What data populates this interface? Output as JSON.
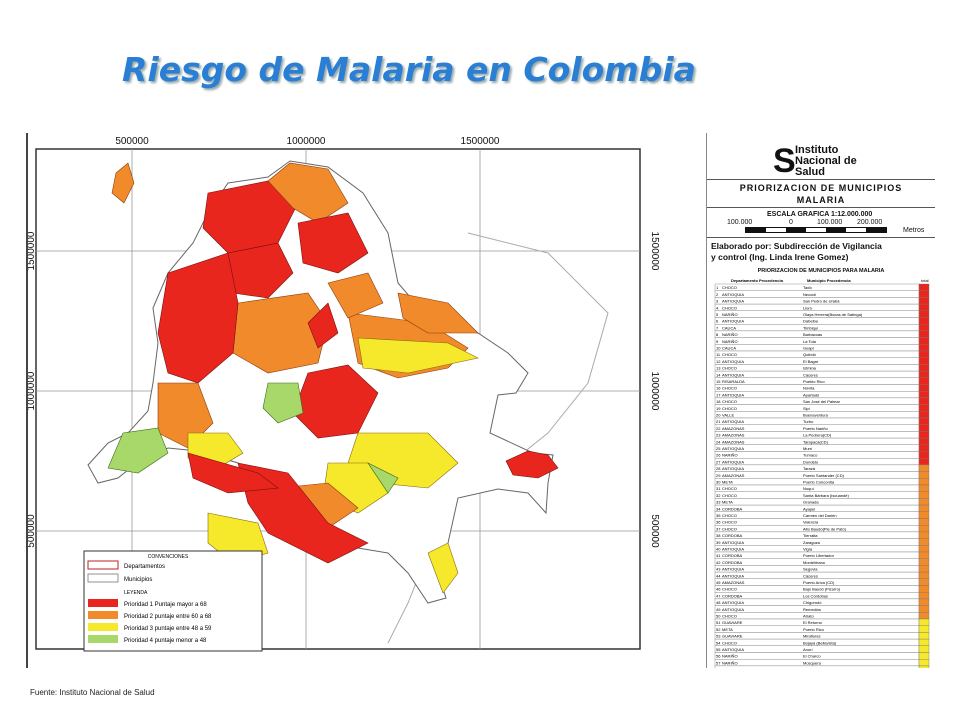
{
  "title": "Riesgo de Malaria en Colombia",
  "source": "Fuente: Instituto Nacional de Salud",
  "map": {
    "x_ticks": [
      "500000",
      "1000000",
      "1500000"
    ],
    "y_ticks": [
      "1500000",
      "1000000",
      "500000"
    ],
    "legend": {
      "conventions_heading": "CONVENCIONES",
      "departamentos": "Departamentos",
      "municipios": "Municipios",
      "leyenda_heading": "LEYENDA",
      "items": [
        {
          "label": "Prioridad 1 Puntaje mayor a 68",
          "color": "#e8261e"
        },
        {
          "label": "Prioridad 2 puntaje entre 60 a 68",
          "color": "#f08a2a"
        },
        {
          "label": "Prioridad 3 puntaje entre 48 a 59",
          "color": "#f6e82a"
        },
        {
          "label": "Prioridad 4 puntaje menor a 48",
          "color": "#a8d86a"
        }
      ]
    }
  },
  "panel": {
    "logo_lines": [
      "Instituto",
      "Nacional de",
      "Salud"
    ],
    "title_line1": "PRIORIZACION DE MUNICIPIOS",
    "title_line2": "MALARIA",
    "scale_label": "ESCALA GRAFICA 1:12.000.000",
    "scale_values": [
      "100.000",
      "0",
      "100.000",
      "200.000"
    ],
    "scale_unit": "Metros",
    "elaborado_line1": "Elaborado por: Subdirección de Vigilancia",
    "elaborado_line2": "y control (Ing. Linda Irene Gomez)",
    "table_title": "PRIORIZACION DE MUNICIPIOS PARA MALARIA",
    "table_headers": [
      "Departamento Procedencia",
      "Municipio Procedencia",
      "total"
    ],
    "rows": [
      [
        "CHOCO",
        "Tadó"
      ],
      [
        "ANTIOQUIA",
        "Necoclí"
      ],
      [
        "ANTIOQUIA",
        "San Pedro de Urabá"
      ],
      [
        "CHOCO",
        "Lloró"
      ],
      [
        "NARIÑO",
        "Olaya Herrera(Bocas de Satinga)"
      ],
      [
        "ANTIOQUIA",
        "Dabeiba"
      ],
      [
        "CAUCA",
        "Timbiquí"
      ],
      [
        "NARIÑO",
        "Barbacoas"
      ],
      [
        "NARIÑO",
        "La Tola"
      ],
      [
        "CAUCA",
        "Guapi"
      ],
      [
        "CHOCO",
        "Quibdó"
      ],
      [
        "ANTIOQUIA",
        "El Bagre"
      ],
      [
        "CHOCO",
        "Istmina"
      ],
      [
        "ANTIOQUIA",
        "Cáceres"
      ],
      [
        "RISARALDA",
        "Pueblo Rico"
      ],
      [
        "CHOCO",
        "Nóvita"
      ],
      [
        "ANTIOQUIA",
        "Apartadó"
      ],
      [
        "CHOCO",
        "San José del Palmar"
      ],
      [
        "CHOCO",
        "Sipí"
      ],
      [
        "VALLE",
        "Buenaventura"
      ],
      [
        "ANTIOQUIA",
        "Turbo"
      ],
      [
        "AMAZONAS",
        "Puerto Nariño"
      ],
      [
        "AMAZONAS",
        "La Pedrera(CD)"
      ],
      [
        "AMAZONAS",
        "Tarapacá(CD)"
      ],
      [
        "ANTIOQUIA",
        "Murrí"
      ],
      [
        "NARIÑO",
        "Tumaco"
      ],
      [
        "ANTIOQUIA",
        "Dondeto"
      ],
      [
        "ANTIOQUIA",
        "Tarazá"
      ],
      [
        "AMAZONAS",
        "Puerto Santander (CD)"
      ],
      [
        "META",
        "Puerto Concordia"
      ],
      [
        "CHOCO",
        "Nuquí"
      ],
      [
        "CHOCO",
        "Santa Bárbara (Iscuandé)"
      ],
      [
        "META",
        "Granada"
      ],
      [
        "CORDOBA",
        "Ayapel"
      ],
      [
        "CHOCO",
        "Carmen del Darién"
      ],
      [
        "CHOCO",
        "Valencia"
      ],
      [
        "CHOCO",
        "Alto Baudó(Pie de Pató)"
      ],
      [
        "CORDOBA",
        "Tierralta"
      ],
      [
        "ANTIOQUIA",
        "Zaragoza"
      ],
      [
        "ANTIOQUIA",
        "Vigía"
      ],
      [
        "CORDOBA",
        "Puerto Libertador"
      ],
      [
        "CORDOBA",
        "Montelíbano"
      ],
      [
        "ANTIOQUIA",
        "Segovia"
      ],
      [
        "ANTIOQUIA",
        "Cáceres"
      ],
      [
        "AMAZONAS",
        "Puerto Arica (CD)"
      ],
      [
        "CHOCO",
        "Bajo Baudó (Pizarro)"
      ],
      [
        "CORDOBA",
        "Los Córdobas"
      ],
      [
        "ANTIOQUIA",
        "Chigorodó"
      ],
      [
        "ANTIOQUIA",
        "Remedios"
      ],
      [
        "CHOCO",
        "Atrato"
      ],
      [
        "GUAVIARE",
        "El Retorno"
      ],
      [
        "META",
        "Puerto Rico"
      ],
      [
        "GUAVIARE",
        "Miraflores"
      ],
      [
        "CHOCO",
        "Bojayá (Bellavista)"
      ],
      [
        "ANTIOQUIA",
        "Anorí"
      ],
      [
        "NARIÑO",
        "El Charco"
      ],
      [
        "NARIÑO",
        "Mosquera"
      ],
      [
        "ANTIOQUIA",
        "La Mina"
      ]
    ]
  }
}
